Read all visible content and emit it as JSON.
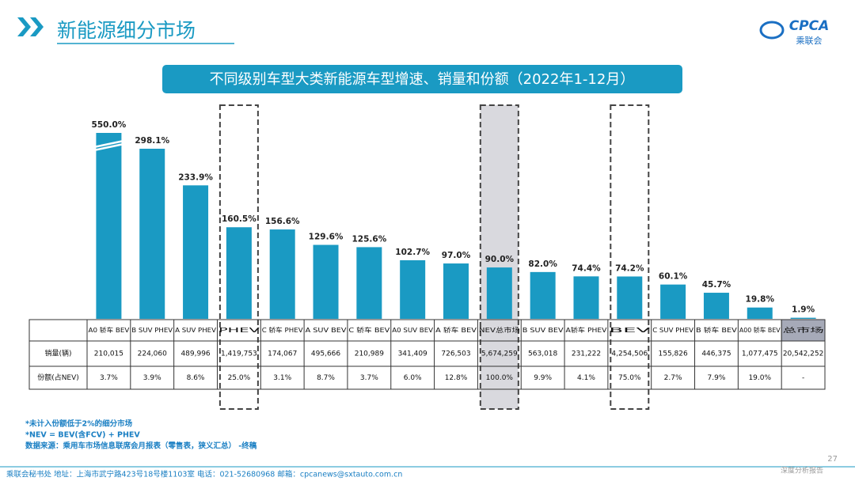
{
  "header": {
    "title": "新能源细分市场",
    "logo": "CPCA",
    "logo_sub": "乘联会"
  },
  "chart_data": {
    "type": "bar",
    "title": "不同级别车型大类新能源车型增速、销量和份额（2022年1-12月）",
    "categories": [
      "A0 轿车 BEV",
      "B SUV PHEV",
      "A SUV PHEV",
      "PHEV",
      "C 轿车 PHEV",
      "A SUV BEV",
      "C 轿车 BEV",
      "A0 SUV BEV",
      "A 轿车 BEV",
      "NEV总市场",
      "B SUV BEV",
      "A轿车 PHEV",
      "BEV",
      "C SUV PHEV",
      "B 轿车 BEV",
      "A00 轿车 BEV",
      "总市场"
    ],
    "values": [
      550.0,
      298.1,
      233.9,
      160.5,
      156.6,
      129.6,
      125.6,
      102.7,
      97.0,
      90.0,
      82.0,
      74.4,
      74.2,
      60.1,
      45.7,
      19.8,
      1.9
    ],
    "value_labels": [
      "550.0%",
      "298.1%",
      "233.9%",
      "160.5%",
      "156.6%",
      "129.6%",
      "125.6%",
      "102.7%",
      "97.0%",
      "90.0%",
      "82.0%",
      "74.4%",
      "74.2%",
      "60.1%",
      "45.7%",
      "19.8%",
      "1.9%"
    ],
    "color": "#1a9ac3"
  },
  "table": {
    "row_labels": [
      "销量(辆)",
      "份额(占NEV)"
    ],
    "rows": [
      [
        "210,015",
        "224,060",
        "489,996",
        "1,419,753",
        "174,067",
        "495,666",
        "210,989",
        "341,409",
        "726,503",
        "5,674,259",
        "563,018",
        "231,222",
        "4,254,506",
        "155,826",
        "446,375",
        "1,077,475",
        "20,542,252"
      ],
      [
        "3.7%",
        "3.9%",
        "8.6%",
        "25.0%",
        "3.1%",
        "8.7%",
        "3.7%",
        "6.0%",
        "12.8%",
        "100.0%",
        "9.9%",
        "4.1%",
        "75.0%",
        "2.7%",
        "7.9%",
        "19.0%",
        "-"
      ]
    ]
  },
  "notes": [
    "*未计入份额低于2%的细分市场",
    "*NEV = BEV(含FCV) + PHEV",
    "数据来源：乘用车市场信息联席会月报表（零售表，狭义汇总） -终稿"
  ],
  "footer": {
    "contact": "乘联会秘书处  地址：上海市武宁路423号18号楼1103室  电话：021-52680968  邮箱：cpcanews@sxtauto.com.cn",
    "page": "27",
    "tag": "深度分析报告"
  }
}
